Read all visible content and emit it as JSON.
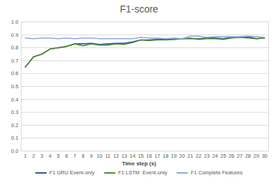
{
  "chart_data": {
    "type": "line",
    "title": "F1-score",
    "x_label": "Time step (s)",
    "x": [
      1,
      2,
      3,
      4,
      5,
      6,
      7,
      8,
      9,
      10,
      11,
      12,
      13,
      14,
      15,
      16,
      17,
      18,
      19,
      20,
      21,
      22,
      23,
      24,
      25,
      26,
      27,
      28,
      29,
      30
    ],
    "xlim": [
      0.5,
      30.5
    ],
    "xticks": [
      1,
      2,
      3,
      4,
      5,
      6,
      7,
      8,
      9,
      10,
      11,
      12,
      13,
      14,
      15,
      16,
      17,
      18,
      19,
      20,
      21,
      22,
      23,
      24,
      25,
      26,
      27,
      28,
      29,
      30
    ],
    "ylim": [
      0,
      1
    ],
    "yticks": [
      0,
      0.1,
      0.2,
      0.3,
      0.4,
      0.5,
      0.6,
      0.7,
      0.8,
      0.9,
      1
    ],
    "grid": true,
    "legend": "bottom",
    "series": [
      {
        "name": "F1 GRU Event-only",
        "color": "#2f5597",
        "values": [
          0.65,
          0.73,
          0.75,
          0.79,
          0.8,
          0.81,
          0.83,
          0.83,
          0.835,
          0.825,
          0.83,
          0.835,
          0.835,
          0.845,
          0.86,
          0.86,
          0.865,
          0.865,
          0.865,
          0.87,
          0.87,
          0.87,
          0.875,
          0.875,
          0.87,
          0.88,
          0.88,
          0.885,
          0.87,
          0.875
        ]
      },
      {
        "name": "F1 LSTM  Event-only",
        "color": "#4e8a2f",
        "values": [
          0.65,
          0.73,
          0.75,
          0.79,
          0.8,
          0.81,
          0.83,
          0.815,
          0.83,
          0.82,
          0.82,
          0.83,
          0.825,
          0.84,
          0.86,
          0.855,
          0.86,
          0.86,
          0.865,
          0.87,
          0.875,
          0.865,
          0.87,
          0.87,
          0.865,
          0.875,
          0.88,
          0.875,
          0.87,
          0.875
        ]
      },
      {
        "name": "F1 Complete Features",
        "color": "#8ea9db",
        "values": [
          0.875,
          0.87,
          0.875,
          0.875,
          0.87,
          0.875,
          0.87,
          0.875,
          0.875,
          0.87,
          0.87,
          0.87,
          0.87,
          0.87,
          0.88,
          0.875,
          0.875,
          0.87,
          0.875,
          0.87,
          0.89,
          0.89,
          0.88,
          0.885,
          0.885,
          0.885,
          0.885,
          0.89,
          0.885,
          0.88
        ]
      }
    ]
  }
}
